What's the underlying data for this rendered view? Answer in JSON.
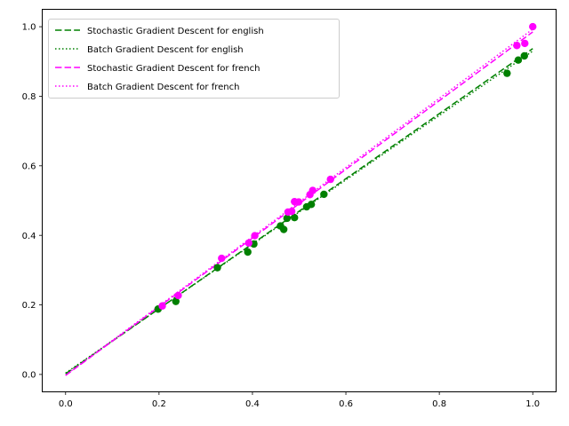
{
  "chart_data": {
    "type": "scatter",
    "title": "",
    "xlabel": "",
    "ylabel": "",
    "xlim": [
      -0.05,
      1.05
    ],
    "ylim": [
      -0.05,
      1.05
    ],
    "xticks": [
      "0.0",
      "0.2",
      "0.4",
      "0.6",
      "0.8",
      "1.0"
    ],
    "yticks": [
      "0.0",
      "0.2",
      "0.4",
      "0.6",
      "0.8",
      "1.0"
    ],
    "xtick_values": [
      0.0,
      0.2,
      0.4,
      0.6,
      0.8,
      1.0
    ],
    "ytick_values": [
      0.0,
      0.2,
      0.4,
      0.6,
      0.8,
      1.0
    ],
    "grid": false,
    "legend_position": "upper-left",
    "point_series": [
      {
        "color": "#008000",
        "points": [
          [
            0.198,
            0.188
          ],
          [
            0.236,
            0.21
          ],
          [
            0.325,
            0.307
          ],
          [
            0.39,
            0.352
          ],
          [
            0.403,
            0.375
          ],
          [
            0.46,
            0.427
          ],
          [
            0.467,
            0.417
          ],
          [
            0.474,
            0.449
          ],
          [
            0.49,
            0.451
          ],
          [
            0.516,
            0.482
          ],
          [
            0.526,
            0.489
          ],
          [
            0.553,
            0.518
          ],
          [
            0.945,
            0.866
          ],
          [
            0.969,
            0.904
          ],
          [
            0.982,
            0.916
          ]
        ]
      },
      {
        "color": "#ff00ff",
        "points": [
          [
            0.207,
            0.197
          ],
          [
            0.241,
            0.227
          ],
          [
            0.334,
            0.334
          ],
          [
            0.392,
            0.378
          ],
          [
            0.405,
            0.399
          ],
          [
            0.476,
            0.467
          ],
          [
            0.484,
            0.469
          ],
          [
            0.49,
            0.497
          ],
          [
            0.499,
            0.496
          ],
          [
            0.523,
            0.517
          ],
          [
            0.529,
            0.529
          ],
          [
            0.567,
            0.561
          ],
          [
            0.966,
            0.946
          ],
          [
            0.983,
            0.952
          ],
          [
            1.0,
            1.0
          ]
        ]
      }
    ],
    "series": [
      {
        "name": "Stochastic Gradient Descent for english",
        "color": "#008000",
        "dash": "dashed",
        "x": [
          0.0,
          1.0
        ],
        "y": [
          0.002,
          0.937
        ]
      },
      {
        "name": "Batch Gradient Descent for english",
        "color": "#008000",
        "dash": "dotted",
        "x": [
          0.0,
          1.0
        ],
        "y": [
          0.004,
          0.93
        ]
      },
      {
        "name": "Stochastic Gradient Descent for french",
        "color": "#ff00ff",
        "dash": "dashed",
        "x": [
          0.0,
          1.0
        ],
        "y": [
          -0.003,
          0.985
        ]
      },
      {
        "name": "Batch Gradient Descent for french",
        "color": "#ff00ff",
        "dash": "dotted",
        "x": [
          0.0,
          1.0
        ],
        "y": [
          -0.002,
          0.993
        ]
      }
    ]
  }
}
